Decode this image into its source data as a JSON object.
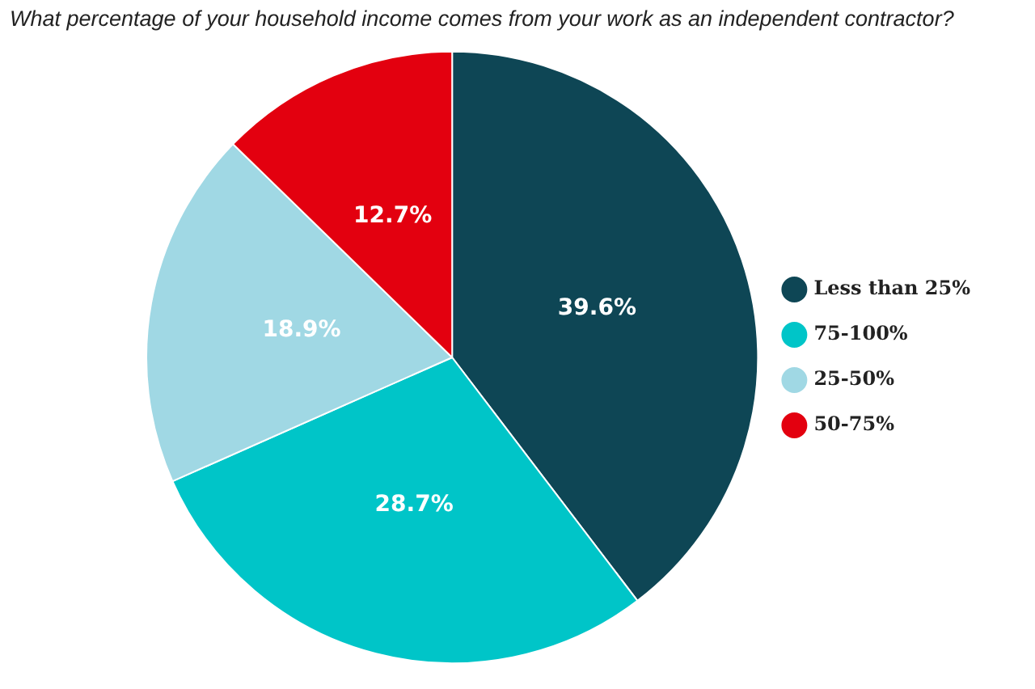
{
  "chart_data": {
    "type": "pie",
    "title": "What percentage of your household income comes from your work as an independent contractor?",
    "categories": [
      "Less than 25%",
      "75-100%",
      "25-50%",
      "50-75%"
    ],
    "values": [
      39.6,
      28.7,
      18.9,
      12.7
    ],
    "colors": [
      "#0e4655",
      "#00c5c8",
      "#a0d8e4",
      "#e3000f"
    ],
    "value_labels": [
      "39.6%",
      "28.7%",
      "18.9%",
      "12.7%"
    ],
    "legend": "right"
  }
}
